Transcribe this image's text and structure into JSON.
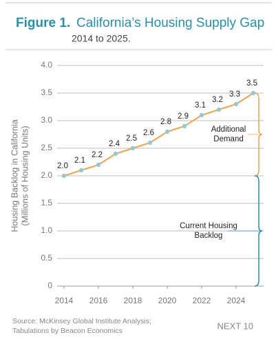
{
  "chart_data": {
    "type": "line",
    "title_prefix": "Figure 1.",
    "title": "California’s Housing Supply Gap",
    "subtitle": "2014 to 2025.",
    "y_label": [
      "Housing Backlog in California",
      "(Millions of Housing Units)"
    ],
    "x": [
      2014,
      2015,
      2016,
      2017,
      2018,
      2019,
      2020,
      2021,
      2022,
      2023,
      2024,
      2025
    ],
    "series": [
      {
        "color": "#f0a24c",
        "marker_color": "#8fc9da",
        "values": [
          2.0,
          2.1,
          2.2,
          2.4,
          2.5,
          2.6,
          2.8,
          2.9,
          3.1,
          3.2,
          3.3,
          3.5
        ],
        "value_labels": [
          "2.0",
          "2.1",
          "2.2",
          "2.4",
          "2.5",
          "2.6",
          "2.8",
          "2.9",
          "3.1",
          "3.2",
          "3.3",
          "3.5"
        ]
      }
    ],
    "xlim": [
      2013.6,
      2025.6
    ],
    "xticks": [
      2014,
      2016,
      2018,
      2020,
      2022,
      2024
    ],
    "ylim": [
      0,
      4
    ],
    "yticks": [
      0,
      {
        "value": 0.5,
        "label": "0.5"
      },
      {
        "value": 1,
        "label": "1.0"
      },
      {
        "value": 1.5,
        "label": "1.5"
      },
      {
        "value": 2,
        "label": "2.0"
      },
      {
        "value": 2.5,
        "label": "2.5"
      },
      {
        "value": 3,
        "label": "3.0"
      },
      {
        "value": 3.5,
        "label": "3.5"
      },
      {
        "value": 4,
        "label": "4.0"
      }
    ],
    "grid": true,
    "annotations": [
      {
        "lines": [
          "Additional",
          "Demand"
        ],
        "color": "#f0a24c"
      },
      {
        "lines": [
          "Current Housing",
          "Backlog"
        ],
        "color": "#1d8fae"
      }
    ],
    "source": [
      "Source: McKinsey Global Institute Analysis;",
      "Tabulations by Beacon Economics"
    ],
    "brand": "NEXT 10"
  }
}
